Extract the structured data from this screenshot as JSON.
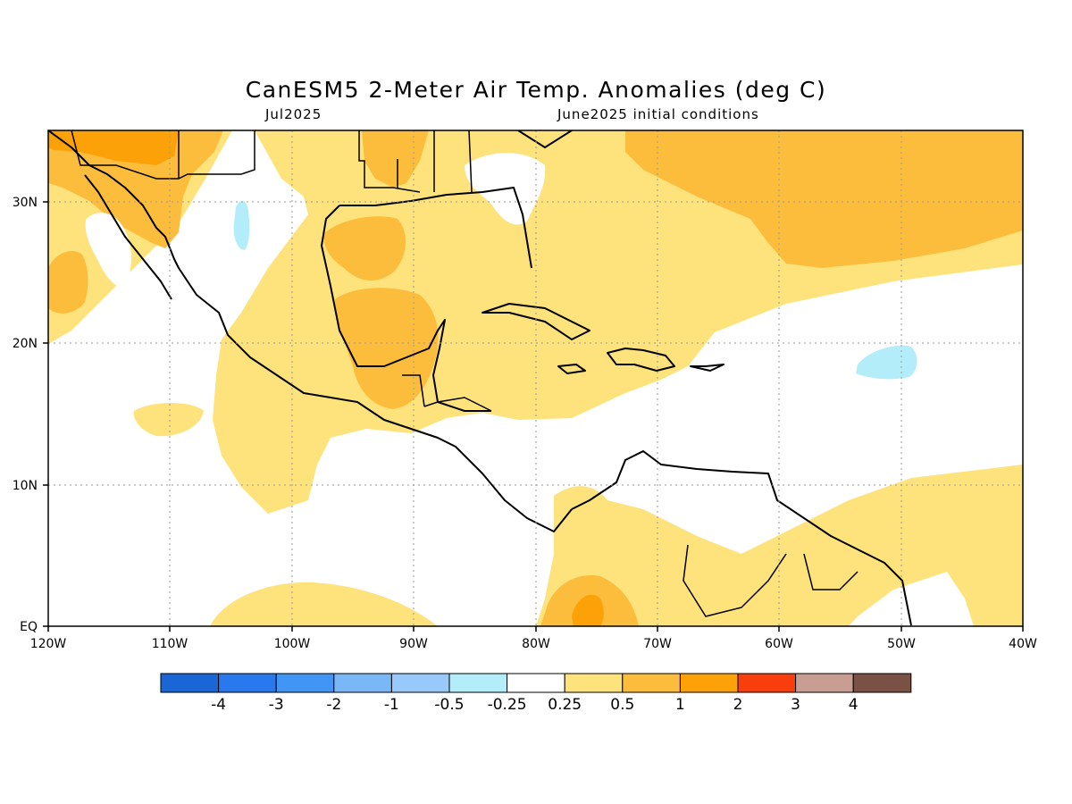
{
  "title": "CanESM5 2-Meter Air Temp. Anomalies (deg C)",
  "subtitle_left": "Jul2025",
  "subtitle_right": "June2025 initial conditions",
  "axes": {
    "lat_ticks": [
      "30N",
      "20N",
      "10N",
      "EQ"
    ],
    "lon_ticks": [
      "120W",
      "110W",
      "100W",
      "90W",
      "80W",
      "70W",
      "60W",
      "50W",
      "40W"
    ]
  },
  "colorbar": {
    "colors": [
      "#1a66d6",
      "#2a78ee",
      "#4195f5",
      "#7ab7f7",
      "#99c9fa",
      "#b4edfa",
      "#ffffff",
      "#fee27b",
      "#fdbd3c",
      "#fca108",
      "#f73e0c",
      "#c89e92",
      "#7a5145"
    ],
    "labels": [
      "-4",
      "-3",
      "-2",
      "-1",
      "-0.5",
      "-0.25",
      "0.25",
      "0.5",
      "1",
      "2",
      "3",
      "4"
    ]
  },
  "colors": {
    "light_yellow": "#fee27b",
    "light_orange": "#fdbd3c",
    "orange": "#fca108",
    "light_blue": "#b4edfa"
  }
}
